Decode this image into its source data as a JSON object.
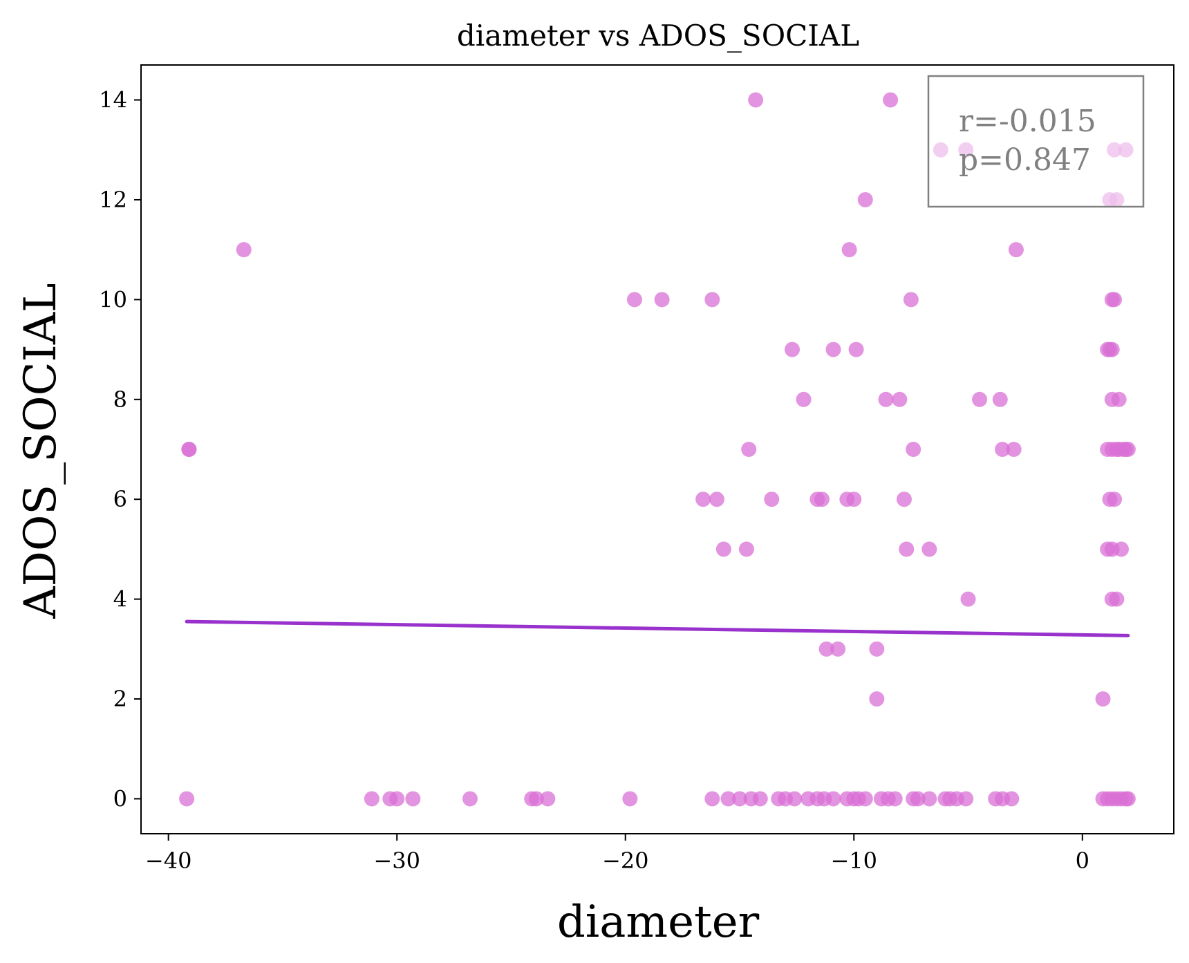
{
  "chart_data": {
    "type": "scatter",
    "title": "diameter vs ADOS_SOCIAL",
    "xlabel": "diameter",
    "ylabel": "ADOS_SOCIAL",
    "xlim": [
      -41.2,
      4.0
    ],
    "ylim": [
      -0.7,
      14.7
    ],
    "xticks": [
      -40,
      -30,
      -20,
      -10,
      0
    ],
    "xtick_labels": [
      "−40",
      "−30",
      "−20",
      "−10",
      "0"
    ],
    "yticks": [
      0,
      2,
      4,
      6,
      8,
      10,
      12,
      14
    ],
    "ytick_labels": [
      "0",
      "2",
      "4",
      "6",
      "8",
      "10",
      "12",
      "14"
    ],
    "grid": false,
    "point_color": "#da70d6",
    "line_color": "#9932cc",
    "annotation": {
      "lines": [
        "r=-0.015",
        "p=0.847"
      ],
      "position": "top-right"
    },
    "regression_line": {
      "x": [
        -39.2,
        2.0
      ],
      "y": [
        3.55,
        3.27
      ]
    },
    "points": [
      [
        -36.7,
        11
      ],
      [
        -39.1,
        7
      ],
      [
        -39.2,
        0
      ],
      [
        -14.3,
        14
      ],
      [
        -8.4,
        14
      ],
      [
        -6.2,
        13
      ],
      [
        -5.1,
        13
      ],
      [
        1.4,
        13
      ],
      [
        1.9,
        13
      ],
      [
        -9.5,
        12
      ],
      [
        1.2,
        12
      ],
      [
        1.5,
        12
      ],
      [
        -10.2,
        11
      ],
      [
        -2.9,
        11
      ],
      [
        -19.6,
        10
      ],
      [
        -18.4,
        10
      ],
      [
        -16.2,
        10
      ],
      [
        -7.5,
        10
      ],
      [
        1.3,
        10
      ],
      [
        1.4,
        10
      ],
      [
        -12.7,
        9
      ],
      [
        -10.9,
        9
      ],
      [
        -9.9,
        9
      ],
      [
        1.1,
        9
      ],
      [
        1.2,
        9
      ],
      [
        1.3,
        9
      ],
      [
        -12.2,
        8
      ],
      [
        -8.6,
        8
      ],
      [
        -8.0,
        8
      ],
      [
        -4.5,
        8
      ],
      [
        -3.6,
        8
      ],
      [
        1.3,
        8
      ],
      [
        1.6,
        8
      ],
      [
        -39.1,
        7
      ],
      [
        -14.6,
        7
      ],
      [
        -7.4,
        7
      ],
      [
        -3.5,
        7
      ],
      [
        -3.0,
        7
      ],
      [
        1.1,
        7
      ],
      [
        1.3,
        7
      ],
      [
        1.5,
        7
      ],
      [
        1.6,
        7
      ],
      [
        1.8,
        7
      ],
      [
        1.9,
        7
      ],
      [
        2.0,
        7
      ],
      [
        -16.6,
        6
      ],
      [
        -16.0,
        6
      ],
      [
        -13.6,
        6
      ],
      [
        -11.6,
        6
      ],
      [
        -11.4,
        6
      ],
      [
        -10.3,
        6
      ],
      [
        -10.0,
        6
      ],
      [
        -7.8,
        6
      ],
      [
        1.2,
        6
      ],
      [
        1.4,
        6
      ],
      [
        -15.7,
        5
      ],
      [
        -14.7,
        5
      ],
      [
        -7.7,
        5
      ],
      [
        -6.7,
        5
      ],
      [
        1.1,
        5
      ],
      [
        1.3,
        5
      ],
      [
        1.7,
        5
      ],
      [
        -5.0,
        4
      ],
      [
        1.3,
        4
      ],
      [
        1.5,
        4
      ],
      [
        -11.2,
        3
      ],
      [
        -10.7,
        3
      ],
      [
        -9.0,
        3
      ],
      [
        -9.0,
        2
      ],
      [
        0.9,
        2
      ],
      [
        -31.1,
        0
      ],
      [
        -30.3,
        0
      ],
      [
        -30.0,
        0
      ],
      [
        -29.3,
        0
      ],
      [
        -26.8,
        0
      ],
      [
        -24.1,
        0
      ],
      [
        -23.9,
        0
      ],
      [
        -23.4,
        0
      ],
      [
        -19.8,
        0
      ],
      [
        -16.2,
        0
      ],
      [
        -15.5,
        0
      ],
      [
        -15.0,
        0
      ],
      [
        -14.5,
        0
      ],
      [
        -14.1,
        0
      ],
      [
        -13.3,
        0
      ],
      [
        -13.0,
        0
      ],
      [
        -12.6,
        0
      ],
      [
        -12.0,
        0
      ],
      [
        -11.6,
        0
      ],
      [
        -11.3,
        0
      ],
      [
        -10.9,
        0
      ],
      [
        -10.3,
        0
      ],
      [
        -10.0,
        0
      ],
      [
        -9.8,
        0
      ],
      [
        -9.5,
        0
      ],
      [
        -8.8,
        0
      ],
      [
        -8.5,
        0
      ],
      [
        -8.2,
        0
      ],
      [
        -7.4,
        0
      ],
      [
        -7.2,
        0
      ],
      [
        -6.7,
        0
      ],
      [
        -6.0,
        0
      ],
      [
        -5.8,
        0
      ],
      [
        -5.5,
        0
      ],
      [
        -5.1,
        0
      ],
      [
        -3.8,
        0
      ],
      [
        -3.5,
        0
      ],
      [
        -3.1,
        0
      ],
      [
        0.9,
        0
      ],
      [
        1.1,
        0
      ],
      [
        1.3,
        0
      ],
      [
        1.5,
        0
      ],
      [
        1.7,
        0
      ],
      [
        1.9,
        0
      ],
      [
        2.0,
        0
      ]
    ]
  }
}
